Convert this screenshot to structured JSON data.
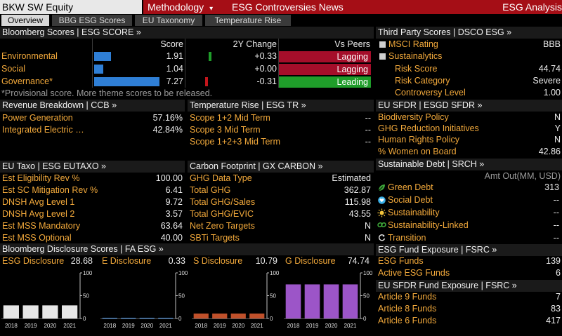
{
  "header": {
    "ticker": "BKW SW Equity",
    "methodology": "Methodology",
    "methodology_arrow": "▾",
    "controversies": "ESG Controversies News",
    "analysis": "ESG Analysis"
  },
  "tabs": [
    "Overview",
    "BBG ESG Scores",
    "EU Taxonomy",
    "Temperature Rise"
  ],
  "bloomberg_scores": {
    "title": "Bloomberg Scores | ESG SCORE »",
    "col_score": "Score",
    "col_change": "2Y Change",
    "col_peers": "Vs Peers",
    "rows": [
      {
        "name": "Environmental",
        "score": "1.91",
        "score_fraction": 0.19,
        "change": "+0.33",
        "peers": "Lagging"
      },
      {
        "name": "Social",
        "score": "1.04",
        "score_fraction": 0.1,
        "change": "+0.00",
        "peers": "Lagging"
      },
      {
        "name": "Governance*",
        "score": "7.27",
        "score_fraction": 0.73,
        "change": "-0.31",
        "peers": "Leading"
      }
    ],
    "note": "*Provisional score. More theme scores to be released."
  },
  "third_party": {
    "title": "Third Party Scores | DSCO ESG »",
    "msci_label": "MSCI Rating",
    "msci_value": "BBB",
    "sustainalytics_label": "Sustainalytics",
    "items": [
      {
        "label": "Risk Score",
        "value": "44.74"
      },
      {
        "label": "Risk Category",
        "value": "Severe"
      },
      {
        "label": "Controversy Level",
        "value": "1.00"
      }
    ]
  },
  "revenue": {
    "title": "Revenue Breakdown | CCB »",
    "rows": [
      {
        "label": "Power Generation",
        "value": "57.16%"
      },
      {
        "label": "Integrated Electric …",
        "value": "42.84%"
      }
    ]
  },
  "temperature": {
    "title": "Temperature Rise | ESG TR »",
    "rows": [
      {
        "label": "Scope 1+2 Mid Term",
        "value": "--"
      },
      {
        "label": "Scope 3 Mid Term",
        "value": "--"
      },
      {
        "label": "Scope 1+2+3 Mid Term",
        "value": "--"
      }
    ]
  },
  "eu_sfdr": {
    "title": "EU SFDR | ESGD SFDR »",
    "rows": [
      {
        "label": "Biodiversity Policy",
        "value": "N"
      },
      {
        "label": "GHG Reduction Initiatives",
        "value": "Y"
      },
      {
        "label": "Human Rights Policy",
        "value": "N"
      },
      {
        "label": "% Women on Board",
        "value": "42.86"
      }
    ]
  },
  "eu_taxo": {
    "title": "EU Taxo | ESG EUTAXO »",
    "rows": [
      {
        "label": "Est Eligibility Rev %",
        "value": "100.00"
      },
      {
        "label": "Est SC Mitigation Rev %",
        "value": "6.41"
      },
      {
        "label": "DNSH Avg Level 1",
        "value": "9.72"
      },
      {
        "label": "DNSH Avg Level 2",
        "value": "3.57"
      },
      {
        "label": "Est MSS Mandatory",
        "value": "63.64"
      },
      {
        "label": "Est MSS Optional",
        "value": "40.00"
      }
    ]
  },
  "carbon": {
    "title": "Carbon Footprint | GX CARBON »",
    "rows": [
      {
        "label": "GHG Data Type",
        "value": "Estimated"
      },
      {
        "label": "Total GHG",
        "value": "362.87"
      },
      {
        "label": "Total GHG/Sales",
        "value": "115.98"
      },
      {
        "label": "Total GHG/EVIC",
        "value": "43.55"
      },
      {
        "label": "Net Zero Targets",
        "value": "N"
      },
      {
        "label": "SBTi Targets",
        "value": "N"
      }
    ]
  },
  "sustainable_debt": {
    "title": "Sustainable Debt | SRCH »",
    "col": "Amt Out(MM, USD)",
    "rows": [
      {
        "label": "Green Debt",
        "value": "313",
        "icon": "leaf-icon",
        "color": "#3ea83a"
      },
      {
        "label": "Social Debt",
        "value": "--",
        "icon": "heart-icon",
        "color": "#39b0e8"
      },
      {
        "label": "Sustainability",
        "value": "--",
        "icon": "sun-icon",
        "color": "#f2c33b"
      },
      {
        "label": "Sustainability-Linked",
        "value": "--",
        "icon": "link-icon",
        "color": "#3ea83a"
      },
      {
        "label": "Transition",
        "value": "--",
        "icon": "transition-icon",
        "color": "#e8e8e8"
      }
    ]
  },
  "fund_exposure": {
    "title": "ESG Fund Exposure | FSRC »",
    "rows": [
      {
        "label": "ESG Funds",
        "value": "139"
      },
      {
        "label": "Active ESG Funds",
        "value": "6"
      }
    ]
  },
  "sfdr_funds": {
    "title": "EU SFDR Fund Exposure | FSRC »",
    "rows": [
      {
        "label": "Article 9 Funds",
        "value": "7"
      },
      {
        "label": "Article 8 Funds",
        "value": "83"
      },
      {
        "label": "Article 6 Funds",
        "value": "417"
      }
    ]
  },
  "disclosure": {
    "title": "Bloomberg Disclosure Scores | FA ESG »",
    "charts": [
      {
        "label": "ESG Disclosure",
        "value": "28.68",
        "color": "#e6e6e6"
      },
      {
        "label": "E Disclosure",
        "value": "0.33",
        "color": "#2f7fd6"
      },
      {
        "label": "S Disclosure",
        "value": "10.79",
        "color": "#c0502a"
      },
      {
        "label": "G Disclosure",
        "value": "74.74",
        "color": "#9c55c8"
      }
    ],
    "years": [
      "2018",
      "2019",
      "2020",
      "2021"
    ],
    "yticks": [
      "100",
      "50",
      "0"
    ]
  },
  "chart_data": [
    {
      "type": "bar",
      "title": "ESG Disclosure",
      "categories": [
        "2018",
        "2019",
        "2020",
        "2021"
      ],
      "values": [
        28.68,
        28.68,
        28.68,
        28.68
      ],
      "ylim": [
        0,
        100
      ]
    },
    {
      "type": "bar",
      "title": "E Disclosure",
      "categories": [
        "2018",
        "2019",
        "2020",
        "2021"
      ],
      "values": [
        0.33,
        0.33,
        0.33,
        0.33
      ],
      "ylim": [
        0,
        100
      ]
    },
    {
      "type": "bar",
      "title": "S Disclosure",
      "categories": [
        "2018",
        "2019",
        "2020",
        "2021"
      ],
      "values": [
        10.79,
        10.79,
        10.79,
        10.79
      ],
      "ylim": [
        0,
        100
      ]
    },
    {
      "type": "bar",
      "title": "G Disclosure",
      "categories": [
        "2018",
        "2019",
        "2020",
        "2021"
      ],
      "values": [
        74.74,
        74.74,
        74.74,
        74.74
      ],
      "ylim": [
        0,
        100
      ]
    }
  ],
  "colors": {
    "amber": "#f2a93b",
    "lagging": "#a50e2a",
    "leading": "#1f9d2a",
    "bar": "#2f7fd6",
    "header_red": "#a50e16"
  }
}
